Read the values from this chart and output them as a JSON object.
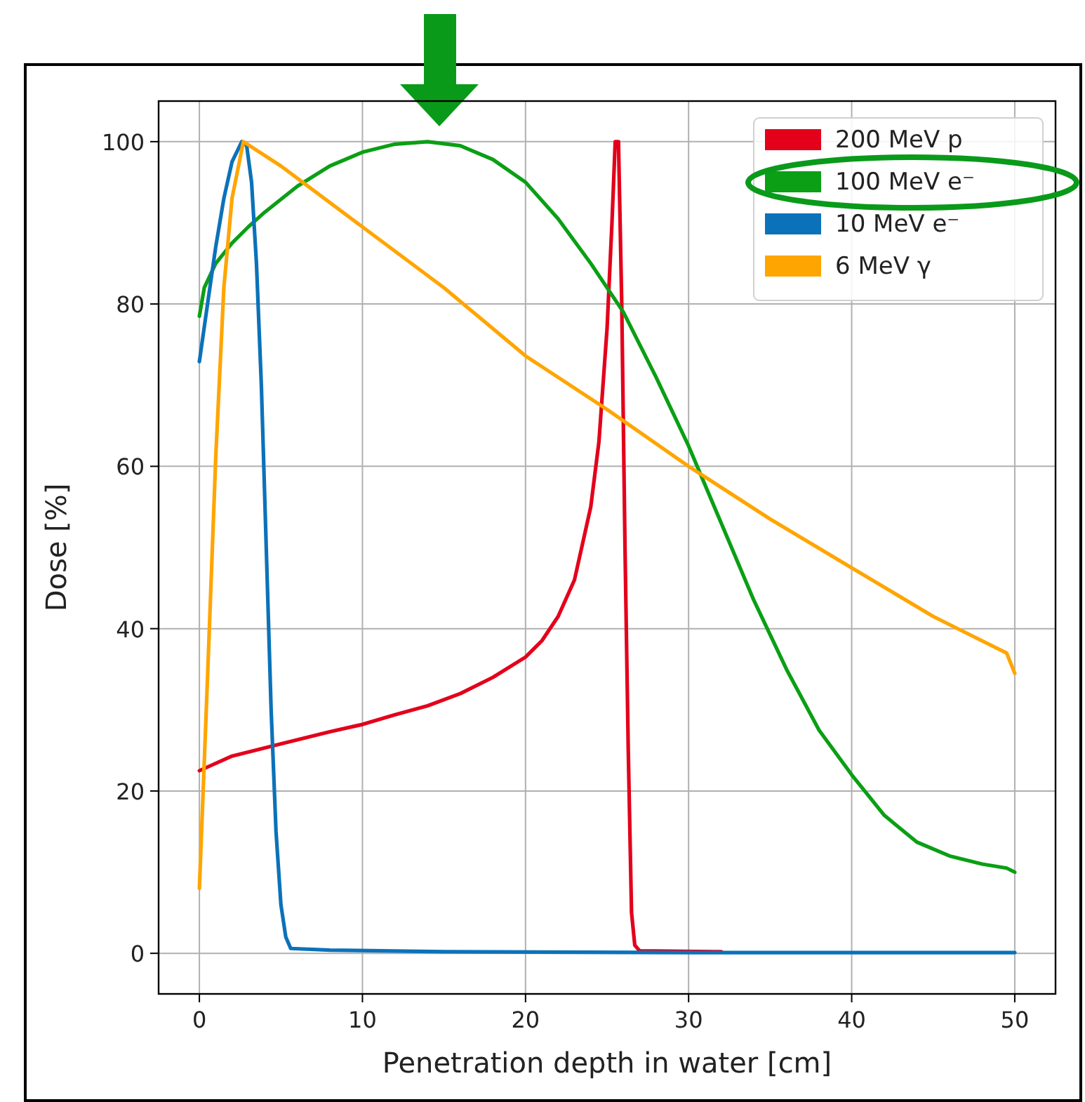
{
  "chart_data": {
    "type": "line",
    "xlabel": "Penetration depth in water [cm]",
    "ylabel": "Dose [%]",
    "xlim": [
      -2.5,
      52.5
    ],
    "ylim": [
      -5,
      105
    ],
    "xticks": [
      0,
      10,
      20,
      30,
      40,
      50
    ],
    "yticks": [
      0,
      20,
      40,
      60,
      80,
      100
    ],
    "grid": true,
    "legend": "top right",
    "marker": "none",
    "line_style": "solid",
    "series": [
      {
        "name": "200 MeV p",
        "color": "#e3001b",
        "x": [
          0,
          2,
          5,
          8,
          10,
          12,
          14,
          16,
          18,
          20,
          21,
          22,
          23,
          24,
          24.5,
          25,
          25.3,
          25.5,
          25.7,
          25.9,
          26.1,
          26.3,
          26.5,
          26.7,
          27,
          32
        ],
        "values": [
          22.5,
          24.3,
          25.8,
          27.3,
          28.2,
          29.4,
          30.5,
          32,
          34,
          36.5,
          38.5,
          41.5,
          46,
          55,
          63,
          77,
          90,
          100,
          100,
          80,
          50,
          25,
          5,
          1,
          0.3,
          0.2
        ]
      },
      {
        "name": "100 MeV e⁻",
        "color": "#0a9f14",
        "x": [
          0,
          0.3,
          1,
          2,
          3,
          4,
          6,
          8,
          10,
          12,
          14,
          16,
          18,
          20,
          22,
          24,
          26,
          28,
          30,
          32,
          34,
          36,
          38,
          40,
          42,
          44,
          46,
          48,
          49.5,
          50
        ],
        "values": [
          78.5,
          82,
          85,
          87.5,
          89.5,
          91.3,
          94.5,
          97,
          98.7,
          99.7,
          100,
          99.5,
          97.8,
          95,
          90.5,
          85,
          79,
          71,
          62.5,
          53,
          43.5,
          35,
          27.5,
          22,
          17,
          13.7,
          12,
          11,
          10.5,
          10
        ]
      },
      {
        "name": "10 MeV e⁻",
        "color": "#0b72b9",
        "x": [
          0,
          0.5,
          1,
          1.5,
          2,
          2.6,
          2.9,
          3.2,
          3.5,
          3.8,
          4.1,
          4.4,
          4.7,
          5,
          5.3,
          5.6,
          8,
          15,
          30,
          50
        ],
        "values": [
          72.9,
          80,
          87,
          93,
          97.5,
          100,
          99.5,
          95,
          85,
          70,
          50,
          30,
          15,
          6,
          2,
          0.6,
          0.4,
          0.2,
          0.1,
          0.1
        ]
      },
      {
        "name": "6 MeV γ",
        "color": "#ffa500",
        "x": [
          0,
          0.5,
          1,
          1.5,
          2,
          2.7,
          3,
          5,
          10,
          15,
          20,
          25,
          30,
          35,
          40,
          45,
          48,
          49.5,
          50
        ],
        "values": [
          8,
          34,
          61,
          82,
          93,
          100,
          99.6,
          97,
          89.5,
          82,
          73.6,
          67,
          60,
          53.5,
          47.5,
          41.5,
          38.5,
          37,
          34.5
        ]
      }
    ]
  }
}
